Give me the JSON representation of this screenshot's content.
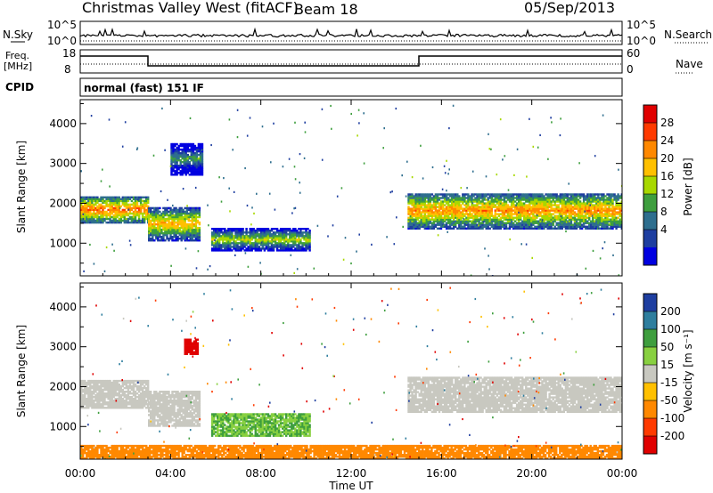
{
  "header": {
    "station": "Christmas Valley West (fitACF)",
    "beam": "Beam 18",
    "date": "05/Sep/2013"
  },
  "strips": {
    "nsky": {
      "label": "N.Sky",
      "ticks": [
        "10^5",
        "10^0"
      ]
    },
    "nsearch": {
      "label": "N.Search",
      "ticks": [
        "10^5",
        "10^0"
      ]
    },
    "freq": {
      "label_line1": "Freq.",
      "label_line2": "[MHz]",
      "ticks": [
        "18",
        "8"
      ]
    },
    "nave": {
      "label": "Nave",
      "ticks": [
        "60",
        "0"
      ]
    },
    "cpid": {
      "label": "CPID",
      "value": "normal (fast) 151 IF"
    }
  },
  "chart_data": [
    {
      "type": "heatmap",
      "panel": "power",
      "xlabel": "Time UT",
      "ylabel": "Slant Range [km]",
      "xlim": [
        0,
        24
      ],
      "ylim": [
        180,
        4600
      ],
      "xticks": [
        "00:00",
        "04:00",
        "08:00",
        "12:00",
        "16:00",
        "20:00",
        "00:00"
      ],
      "yticks": [
        1000,
        2000,
        3000,
        4000
      ],
      "colorbar": {
        "label": "Power [dB]",
        "ticks": [
          "28",
          "24",
          "20",
          "16",
          "12",
          "8",
          "4"
        ],
        "colors": [
          "#e00000",
          "#ff3a00",
          "#ff8800",
          "#ffc000",
          "#a8d800",
          "#3e9e3e",
          "#2e6e8e",
          "#1e3ea0",
          "#0000e0"
        ]
      },
      "features": [
        {
          "t_start": 0.0,
          "t_end": 3.0,
          "range_low": 1500,
          "range_high": 2150,
          "level_db": 26
        },
        {
          "t_start": 3.0,
          "t_end": 5.3,
          "range_low": 1050,
          "range_high": 1900,
          "level_db": 22
        },
        {
          "t_start": 5.8,
          "t_end": 10.2,
          "range_low": 800,
          "range_high": 1350,
          "level_db": 18
        },
        {
          "t_start": 14.5,
          "t_end": 24.0,
          "range_low": 1350,
          "range_high": 2250,
          "level_db": 24
        },
        {
          "t_start": 4.0,
          "t_end": 5.4,
          "range_low": 2700,
          "range_high": 3500,
          "level_db": 12
        }
      ]
    },
    {
      "type": "heatmap",
      "panel": "velocity",
      "xlabel": "Time UT",
      "ylabel": "Slant Range [km]",
      "xlim": [
        0,
        24
      ],
      "ylim": [
        180,
        4600
      ],
      "xticks": [
        "00:00",
        "04:00",
        "08:00",
        "12:00",
        "16:00",
        "20:00",
        "00:00"
      ],
      "yticks": [
        1000,
        2000,
        3000,
        4000
      ],
      "colorbar": {
        "label": "Velocity [m s⁻¹]",
        "ticks": [
          "200",
          "100",
          "50",
          "15",
          "-15",
          "-50",
          "-100",
          "-200"
        ],
        "colors": [
          "#1e3ea0",
          "#2e7e9e",
          "#3e9e3e",
          "#88d040",
          "#c8c8c0",
          "#ffc000",
          "#ff8800",
          "#ff3a00",
          "#e00000"
        ]
      },
      "features": [
        {
          "t_start": 0.0,
          "t_end": 3.0,
          "range_low": 1450,
          "range_high": 2150,
          "velocity": 0
        },
        {
          "t_start": 3.0,
          "t_end": 5.3,
          "range_low": 1000,
          "range_high": 1900,
          "velocity": 0
        },
        {
          "t_start": 5.8,
          "t_end": 10.2,
          "range_low": 750,
          "range_high": 1300,
          "velocity": 30
        },
        {
          "t_start": 14.5,
          "t_end": 24.0,
          "range_low": 1350,
          "range_high": 2250,
          "velocity": 0
        },
        {
          "t_start": 4.6,
          "t_end": 5.2,
          "range_low": 2800,
          "range_high": 3200,
          "velocity": -200
        },
        {
          "t_start": 0.0,
          "t_end": 24.0,
          "range_low": 180,
          "range_high": 500,
          "velocity": -60
        }
      ]
    }
  ]
}
